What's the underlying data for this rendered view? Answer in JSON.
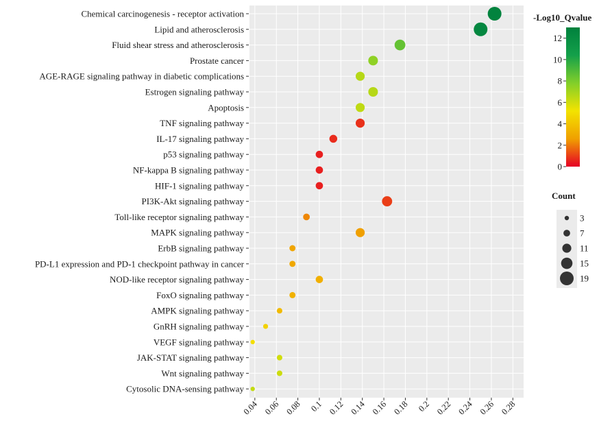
{
  "chart_data": {
    "type": "scatter",
    "title": "",
    "xlabel": "",
    "ylabel": "",
    "xlim": [
      0.035,
      0.29
    ],
    "x_ticks": [
      "0.04",
      "0.06",
      "0.08",
      "0.1",
      "0.12",
      "0.14",
      "0.16",
      "0.18",
      "0.2",
      "0.22",
      "0.24",
      "0.26",
      "0.28"
    ],
    "grid": true,
    "pathways": [
      {
        "name": "Chemical carcinogenesis - receptor activation",
        "x": 0.263,
        "count": 19,
        "neg_log10_q": 12.8
      },
      {
        "name": "Lipid and atherosclerosis",
        "x": 0.25,
        "count": 19,
        "neg_log10_q": 12.5
      },
      {
        "name": "Fluid shear stress and atherosclerosis",
        "x": 0.175,
        "count": 14,
        "neg_log10_q": 8.5
      },
      {
        "name": "Prostate cancer",
        "x": 0.15,
        "count": 12,
        "neg_log10_q": 7.5
      },
      {
        "name": "AGE-RAGE signaling pathway in diabetic complications",
        "x": 0.138,
        "count": 11,
        "neg_log10_q": 6.6
      },
      {
        "name": "Estrogen signaling pathway",
        "x": 0.15,
        "count": 12,
        "neg_log10_q": 6.6
      },
      {
        "name": "Apoptosis",
        "x": 0.138,
        "count": 11,
        "neg_log10_q": 6.4
      },
      {
        "name": "TNF signaling pathway",
        "x": 0.138,
        "count": 11,
        "neg_log10_q": 0.8
      },
      {
        "name": "IL-17 signaling pathway",
        "x": 0.113,
        "count": 9,
        "neg_log10_q": 0.7
      },
      {
        "name": "p53 signaling pathway",
        "x": 0.1,
        "count": 8,
        "neg_log10_q": 0.5
      },
      {
        "name": "NF-kappa B signaling pathway",
        "x": 0.1,
        "count": 8,
        "neg_log10_q": 0.5
      },
      {
        "name": "HIF-1 signaling pathway",
        "x": 0.1,
        "count": 8,
        "neg_log10_q": 0.5
      },
      {
        "name": "PI3K-Akt signaling pathway",
        "x": 0.163,
        "count": 13,
        "neg_log10_q": 1.0
      },
      {
        "name": "Toll-like receptor signaling pathway",
        "x": 0.088,
        "count": 7,
        "neg_log10_q": 2.2
      },
      {
        "name": "MAPK signaling pathway",
        "x": 0.138,
        "count": 11,
        "neg_log10_q": 2.6
      },
      {
        "name": "ErbB signaling pathway",
        "x": 0.075,
        "count": 6,
        "neg_log10_q": 2.8
      },
      {
        "name": "PD-L1 expression and PD-1 checkpoint pathway in cancer",
        "x": 0.075,
        "count": 6,
        "neg_log10_q": 2.9
      },
      {
        "name": "NOD-like receptor signaling pathway",
        "x": 0.1,
        "count": 8,
        "neg_log10_q": 3.2
      },
      {
        "name": "FoxO signaling pathway",
        "x": 0.075,
        "count": 6,
        "neg_log10_q": 3.3
      },
      {
        "name": "AMPK signaling pathway",
        "x": 0.063,
        "count": 5,
        "neg_log10_q": 3.6
      },
      {
        "name": "GnRH signaling pathway",
        "x": 0.05,
        "count": 4,
        "neg_log10_q": 4.5
      },
      {
        "name": "VEGF signaling pathway",
        "x": 0.038,
        "count": 3,
        "neg_log10_q": 5.0
      },
      {
        "name": "JAK-STAT signaling pathway",
        "x": 0.063,
        "count": 5,
        "neg_log10_q": 6.0
      },
      {
        "name": "Wnt signaling pathway",
        "x": 0.063,
        "count": 5,
        "neg_log10_q": 6.1
      },
      {
        "name": "Cytosolic DNA-sensing pathway",
        "x": 0.038,
        "count": 3,
        "neg_log10_q": 6.3
      }
    ],
    "color_legend": {
      "title": "-Log10_Qvalue",
      "min": 0,
      "max": 13,
      "ticks": [
        "0",
        "2",
        "4",
        "6",
        "8",
        "10",
        "12"
      ],
      "colors": [
        "#e60026",
        "#f0a000",
        "#f3e300",
        "#82cf2a",
        "#14a04a",
        "#00813d"
      ]
    },
    "size_legend": {
      "title": "Count",
      "values": [
        3,
        7,
        11,
        15,
        19
      ]
    },
    "panel_color": "#ebebeb",
    "grid_color": "#ffffff"
  }
}
